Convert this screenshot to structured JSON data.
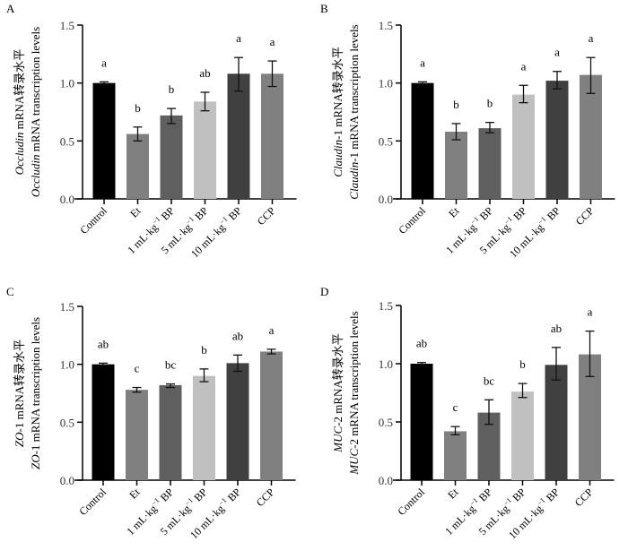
{
  "chart_data": [
    {
      "type": "bar",
      "panel": "A",
      "ylabel_gene": "Occludin",
      "ylabel_line1_suffix": " mRNA转录水平",
      "ylabel_line2_suffix": " mRNA transcription levels",
      "categories": [
        "Control",
        "Et",
        "1 mL·kg⁻¹ BP",
        "5 mL·kg⁻¹ BP",
        "10 mL·kg⁻¹ BP",
        "CCP"
      ],
      "values": [
        1.0,
        0.56,
        0.72,
        0.84,
        1.08,
        1.08
      ],
      "error_low": [
        0.99,
        0.5,
        0.65,
        0.76,
        0.93,
        0.97
      ],
      "error_high": [
        1.01,
        0.62,
        0.78,
        0.92,
        1.22,
        1.19
      ],
      "significance": [
        "a",
        "b",
        "b",
        "ab",
        "a",
        "a"
      ],
      "ylim": [
        0,
        1.5
      ],
      "yticks": [
        "0.0",
        "0.5",
        "1.0",
        "1.5"
      ],
      "bar_colors": [
        "#000000",
        "#808080",
        "#5f5f5f",
        "#c0c0c0",
        "#404040",
        "#808080"
      ]
    },
    {
      "type": "bar",
      "panel": "B",
      "ylabel_gene": "Claudin",
      "ylabel_line1_suffix": "-1 mRNA转录水平",
      "ylabel_line2_suffix": "-1 mRNA transcription levels",
      "categories": [
        "Control",
        "Et",
        "1 mL·kg⁻¹ BP",
        "5 mL·kg⁻¹ BP",
        "10 mL·kg⁻¹ BP",
        "CCP"
      ],
      "values": [
        1.0,
        0.58,
        0.61,
        0.9,
        1.02,
        1.07
      ],
      "error_low": [
        0.99,
        0.51,
        0.57,
        0.83,
        0.95,
        0.91
      ],
      "error_high": [
        1.01,
        0.65,
        0.66,
        0.98,
        1.1,
        1.22
      ],
      "significance": [
        "a",
        "b",
        "b",
        "a",
        "a",
        "a"
      ],
      "ylim": [
        0,
        1.5
      ],
      "yticks": [
        "0.0",
        "0.5",
        "1.0",
        "1.5"
      ],
      "bar_colors": [
        "#000000",
        "#808080",
        "#5f5f5f",
        "#c0c0c0",
        "#404040",
        "#808080"
      ]
    },
    {
      "type": "bar",
      "panel": "C",
      "ylabel_gene": "ZO",
      "ylabel_line1_suffix": "-1 mRNA转录水平",
      "ylabel_line2_suffix": "-1 mRNA transcription levels",
      "categories": [
        "Control",
        "Et",
        "1 mL·kg⁻¹ BP",
        "5 mL·kg⁻¹ BP",
        "10 mL·kg⁻¹ BP",
        "CCP"
      ],
      "values": [
        1.0,
        0.78,
        0.82,
        0.9,
        1.01,
        1.11
      ],
      "error_low": [
        0.99,
        0.76,
        0.8,
        0.85,
        0.94,
        1.09
      ],
      "error_high": [
        1.01,
        0.8,
        0.83,
        0.96,
        1.08,
        1.13
      ],
      "significance": [
        "ab",
        "c",
        "bc",
        "b",
        "ab",
        "a"
      ],
      "ylim": [
        0,
        1.5
      ],
      "yticks": [
        "0.0",
        "0.5",
        "1.0",
        "1.5"
      ],
      "bar_colors": [
        "#000000",
        "#808080",
        "#5f5f5f",
        "#c0c0c0",
        "#404040",
        "#808080"
      ]
    },
    {
      "type": "bar",
      "panel": "D",
      "ylabel_gene": "MUC",
      "ylabel_line1_suffix": "-2 mRNA转录水平",
      "ylabel_line2_suffix": "-2 mRNA transcription levels",
      "categories": [
        "Control",
        "Et",
        "1 mL·kg⁻¹ BP",
        "5 mL·kg⁻¹ BP",
        "10 mL·kg⁻¹ BP",
        "CCP"
      ],
      "values": [
        1.0,
        0.42,
        0.58,
        0.76,
        0.99,
        1.08
      ],
      "error_low": [
        0.99,
        0.39,
        0.48,
        0.71,
        0.86,
        0.89
      ],
      "error_high": [
        1.01,
        0.46,
        0.69,
        0.83,
        1.14,
        1.28
      ],
      "significance": [
        "ab",
        "c",
        "bc",
        "b",
        "ab",
        "a"
      ],
      "ylim": [
        0,
        1.5
      ],
      "yticks": [
        "0.0",
        "0.5",
        "1.0",
        "1.5"
      ],
      "bar_colors": [
        "#000000",
        "#808080",
        "#5f5f5f",
        "#c0c0c0",
        "#404040",
        "#808080"
      ]
    }
  ]
}
